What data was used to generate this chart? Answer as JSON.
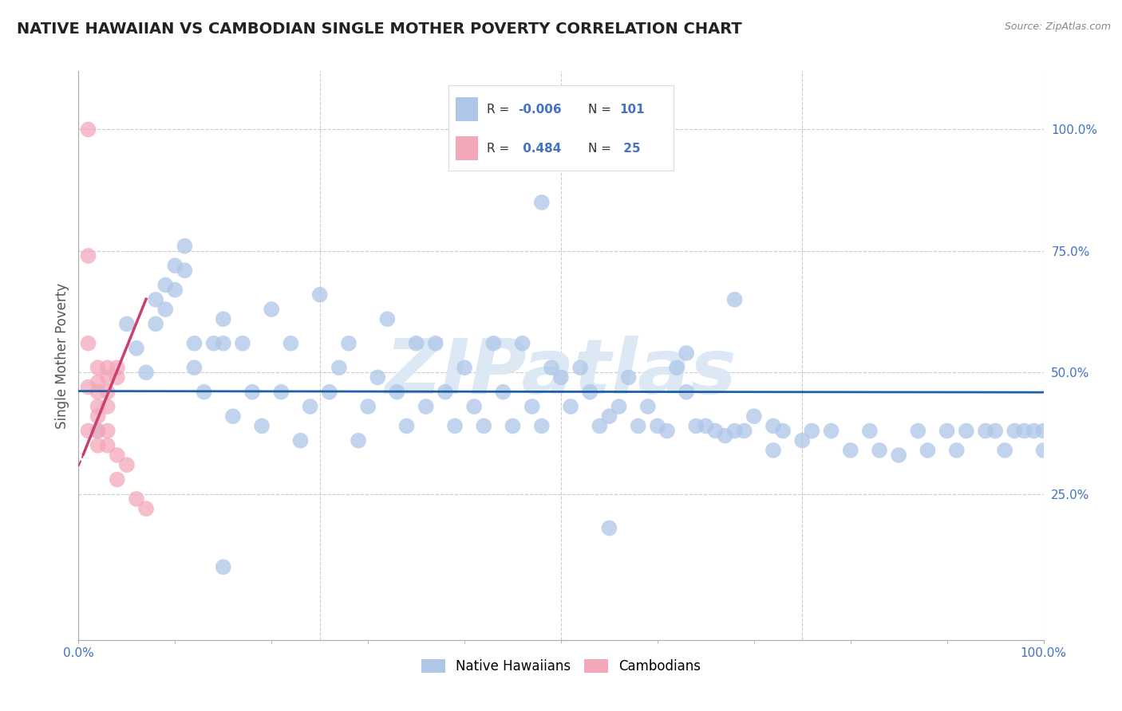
{
  "title": "NATIVE HAWAIIAN VS CAMBODIAN SINGLE MOTHER POVERTY CORRELATION CHART",
  "source": "Source: ZipAtlas.com",
  "xlabel": "",
  "ylabel": "Single Mother Poverty",
  "watermark": "ZIPatlas",
  "xlim": [
    0.0,
    1.0
  ],
  "ylim": [
    -0.05,
    1.12
  ],
  "xtick_positions": [
    0.0,
    1.0
  ],
  "xtick_labels": [
    "0.0%",
    "100.0%"
  ],
  "right_ytick_labels": [
    "100.0%",
    "75.0%",
    "50.0%",
    "25.0%"
  ],
  "right_ytick_positions": [
    1.0,
    0.75,
    0.5,
    0.25
  ],
  "blue_R": -0.006,
  "blue_N": 101,
  "pink_R": 0.484,
  "pink_N": 25,
  "blue_color": "#aec6e8",
  "pink_color": "#f4a7b9",
  "blue_line_color": "#1f5fa6",
  "pink_line_color": "#c94070",
  "grid_color": "#cccccc",
  "background_color": "#ffffff",
  "title_color": "#222222",
  "axis_label_color": "#555555",
  "right_tick_color": "#4472c4",
  "watermark_color": "#dde8f5",
  "native_hawaiian_x": [
    0.02,
    0.05,
    0.06,
    0.07,
    0.08,
    0.08,
    0.09,
    0.09,
    0.1,
    0.1,
    0.11,
    0.11,
    0.12,
    0.12,
    0.13,
    0.14,
    0.15,
    0.15,
    0.16,
    0.17,
    0.18,
    0.19,
    0.2,
    0.21,
    0.22,
    0.23,
    0.24,
    0.25,
    0.26,
    0.27,
    0.28,
    0.29,
    0.3,
    0.31,
    0.32,
    0.33,
    0.34,
    0.35,
    0.36,
    0.37,
    0.38,
    0.39,
    0.4,
    0.41,
    0.42,
    0.43,
    0.44,
    0.45,
    0.46,
    0.47,
    0.48,
    0.49,
    0.5,
    0.51,
    0.52,
    0.53,
    0.54,
    0.55,
    0.56,
    0.57,
    0.58,
    0.59,
    0.6,
    0.61,
    0.62,
    0.63,
    0.64,
    0.65,
    0.66,
    0.67,
    0.68,
    0.69,
    0.7,
    0.72,
    0.73,
    0.75,
    0.76,
    0.78,
    0.8,
    0.82,
    0.83,
    0.85,
    0.87,
    0.88,
    0.9,
    0.91,
    0.92,
    0.94,
    0.95,
    0.96,
    0.97,
    0.98,
    0.99,
    1.0,
    1.0,
    0.63,
    0.68,
    0.72,
    0.55,
    0.48,
    0.15
  ],
  "native_hawaiian_y": [
    0.38,
    0.6,
    0.55,
    0.5,
    0.65,
    0.6,
    0.68,
    0.63,
    0.72,
    0.67,
    0.76,
    0.71,
    0.56,
    0.51,
    0.46,
    0.56,
    0.61,
    0.56,
    0.41,
    0.56,
    0.46,
    0.39,
    0.63,
    0.46,
    0.56,
    0.36,
    0.43,
    0.66,
    0.46,
    0.51,
    0.56,
    0.36,
    0.43,
    0.49,
    0.61,
    0.46,
    0.39,
    0.56,
    0.43,
    0.56,
    0.46,
    0.39,
    0.51,
    0.43,
    0.39,
    0.56,
    0.46,
    0.39,
    0.56,
    0.43,
    0.39,
    0.51,
    0.49,
    0.43,
    0.51,
    0.46,
    0.39,
    0.41,
    0.43,
    0.49,
    0.39,
    0.43,
    0.39,
    0.38,
    0.51,
    0.46,
    0.39,
    0.39,
    0.38,
    0.37,
    0.38,
    0.38,
    0.41,
    0.34,
    0.38,
    0.36,
    0.38,
    0.38,
    0.34,
    0.38,
    0.34,
    0.33,
    0.38,
    0.34,
    0.38,
    0.34,
    0.38,
    0.38,
    0.38,
    0.34,
    0.38,
    0.38,
    0.38,
    0.38,
    0.34,
    0.54,
    0.65,
    0.39,
    0.18,
    0.85,
    0.1
  ],
  "cambodian_x": [
    0.01,
    0.01,
    0.01,
    0.01,
    0.01,
    0.02,
    0.02,
    0.02,
    0.02,
    0.02,
    0.02,
    0.02,
    0.03,
    0.03,
    0.03,
    0.03,
    0.03,
    0.03,
    0.04,
    0.04,
    0.04,
    0.04,
    0.05,
    0.06,
    0.07
  ],
  "cambodian_y": [
    1.0,
    0.74,
    0.56,
    0.47,
    0.38,
    0.51,
    0.48,
    0.46,
    0.43,
    0.41,
    0.38,
    0.35,
    0.51,
    0.49,
    0.46,
    0.43,
    0.38,
    0.35,
    0.51,
    0.49,
    0.33,
    0.28,
    0.31,
    0.24,
    0.22
  ],
  "pink_line_x": [
    0.0,
    0.075
  ],
  "blue_line_x": [
    0.0,
    1.0
  ]
}
